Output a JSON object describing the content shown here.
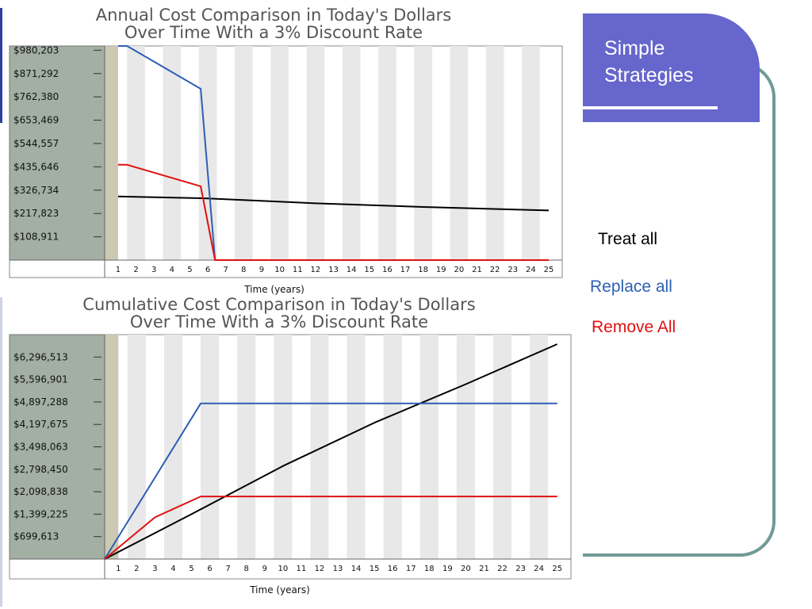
{
  "slide": {
    "title": "Simple\nStrategies",
    "colors": {
      "title_box": "#6666cc",
      "frame": "#6f9a97"
    }
  },
  "legend": [
    {
      "label": "Treat all",
      "color": "#000000"
    },
    {
      "label": "Replace all",
      "color": "#2d5fb3"
    },
    {
      "label": "Remove All",
      "color": "#e01010"
    }
  ],
  "chart_data": [
    {
      "type": "line",
      "title": "Annual Cost Comparison in Today's Dollars\nOver Time With a 3% Discount Rate",
      "xlabel": "Time (years)",
      "ylabel": "",
      "xlim": [
        0.25,
        25.75
      ],
      "ylim": [
        0,
        1000000
      ],
      "x_ticks": [
        "1",
        "2",
        "3",
        "4",
        "5",
        "6",
        "7",
        "8",
        "9",
        "10",
        "11",
        "12",
        "13",
        "14",
        "15",
        "16",
        "17",
        "18",
        "19",
        "20",
        "21",
        "22",
        "23",
        "24",
        "25"
      ],
      "y_ticks": [
        {
          "value": 108911,
          "label": "$108,911"
        },
        {
          "value": 217823,
          "label": "$217,823"
        },
        {
          "value": 326734,
          "label": "$326,734"
        },
        {
          "value": 435646,
          "label": "$435,646"
        },
        {
          "value": 544557,
          "label": "$544,557"
        },
        {
          "value": 653469,
          "label": "$653,469"
        },
        {
          "value": 762380,
          "label": "$762,380"
        },
        {
          "value": 871292,
          "label": "$871,292"
        },
        {
          "value": 980203,
          "label": "$980,203"
        }
      ],
      "series": [
        {
          "color": "#000000",
          "x": [
            1,
            6,
            12,
            18,
            25
          ],
          "y": [
            297000,
            288000,
            265000,
            248000,
            232000
          ]
        },
        {
          "color": "#2d5fb3",
          "x": [
            1,
            1.5,
            5.6,
            6.4,
            25
          ],
          "y": [
            1000000,
            1000000,
            800000,
            0,
            0
          ]
        },
        {
          "color": "#e01010",
          "x": [
            1,
            1.5,
            5.6,
            6.4,
            25
          ],
          "y": [
            445000,
            445000,
            345000,
            0,
            0
          ]
        }
      ],
      "grid": "alternating vertical bands"
    },
    {
      "type": "line",
      "title": "Cumulative Cost Comparison in Today's Dollars\nOver Time With a 3% Discount Rate",
      "xlabel": "Time (years)",
      "ylabel": "",
      "xlim": [
        0.25,
        25.75
      ],
      "ylim": [
        0,
        6996125
      ],
      "x_ticks": [
        "1",
        "2",
        "3",
        "4",
        "5",
        "6",
        "7",
        "8",
        "9",
        "10",
        "11",
        "12",
        "13",
        "14",
        "15",
        "16",
        "17",
        "18",
        "19",
        "20",
        "21",
        "22",
        "23",
        "24",
        "25"
      ],
      "y_ticks": [
        {
          "value": 699613,
          "label": "$699,613"
        },
        {
          "value": 1399225,
          "label": "$1,399,225"
        },
        {
          "value": 2098838,
          "label": "$2,098,838"
        },
        {
          "value": 2798450,
          "label": "$2,798,450"
        },
        {
          "value": 3498063,
          "label": "$3,498,063"
        },
        {
          "value": 4197675,
          "label": "$4,197,675"
        },
        {
          "value": 4897288,
          "label": "$4,897,288"
        },
        {
          "value": 5596901,
          "label": "$5,596,901"
        },
        {
          "value": 6296513,
          "label": "$6,296,513"
        }
      ],
      "series": [
        {
          "color": "#000000",
          "x": [
            0.25,
            5,
            10,
            15,
            20,
            25
          ],
          "y": [
            0,
            1400000,
            2900000,
            4250000,
            5450000,
            6700000
          ]
        },
        {
          "color": "#2d5fb3",
          "x": [
            0.25,
            5.5,
            25
          ],
          "y": [
            0,
            4850000,
            4850000
          ]
        },
        {
          "color": "#e01010",
          "x": [
            0.25,
            3,
            5.5,
            25
          ],
          "y": [
            0,
            1300000,
            1950000,
            1950000
          ]
        }
      ],
      "grid": "alternating vertical bands"
    }
  ]
}
